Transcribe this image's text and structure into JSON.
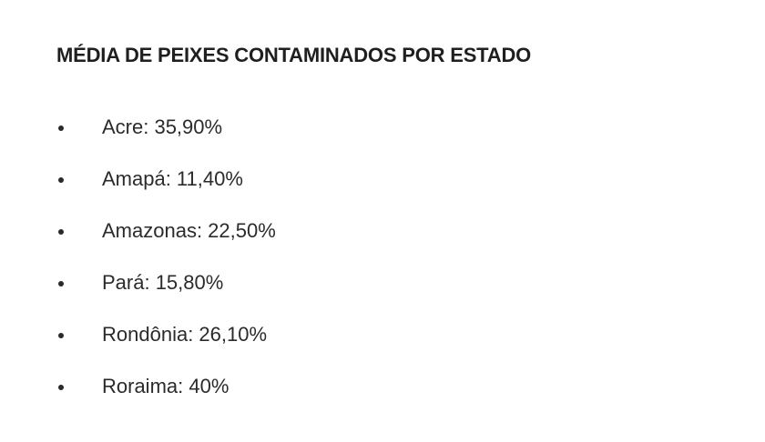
{
  "heading": "MÉDIA DE PEIXES CONTAMINADOS POR ESTADO",
  "states": [
    "Acre: 35,90%",
    "Amapá: 11,40%",
    "Amazonas: 22,50%",
    "Pará: 15,80%",
    "Rondônia: 26,10%",
    "Roraima: 40%"
  ]
}
